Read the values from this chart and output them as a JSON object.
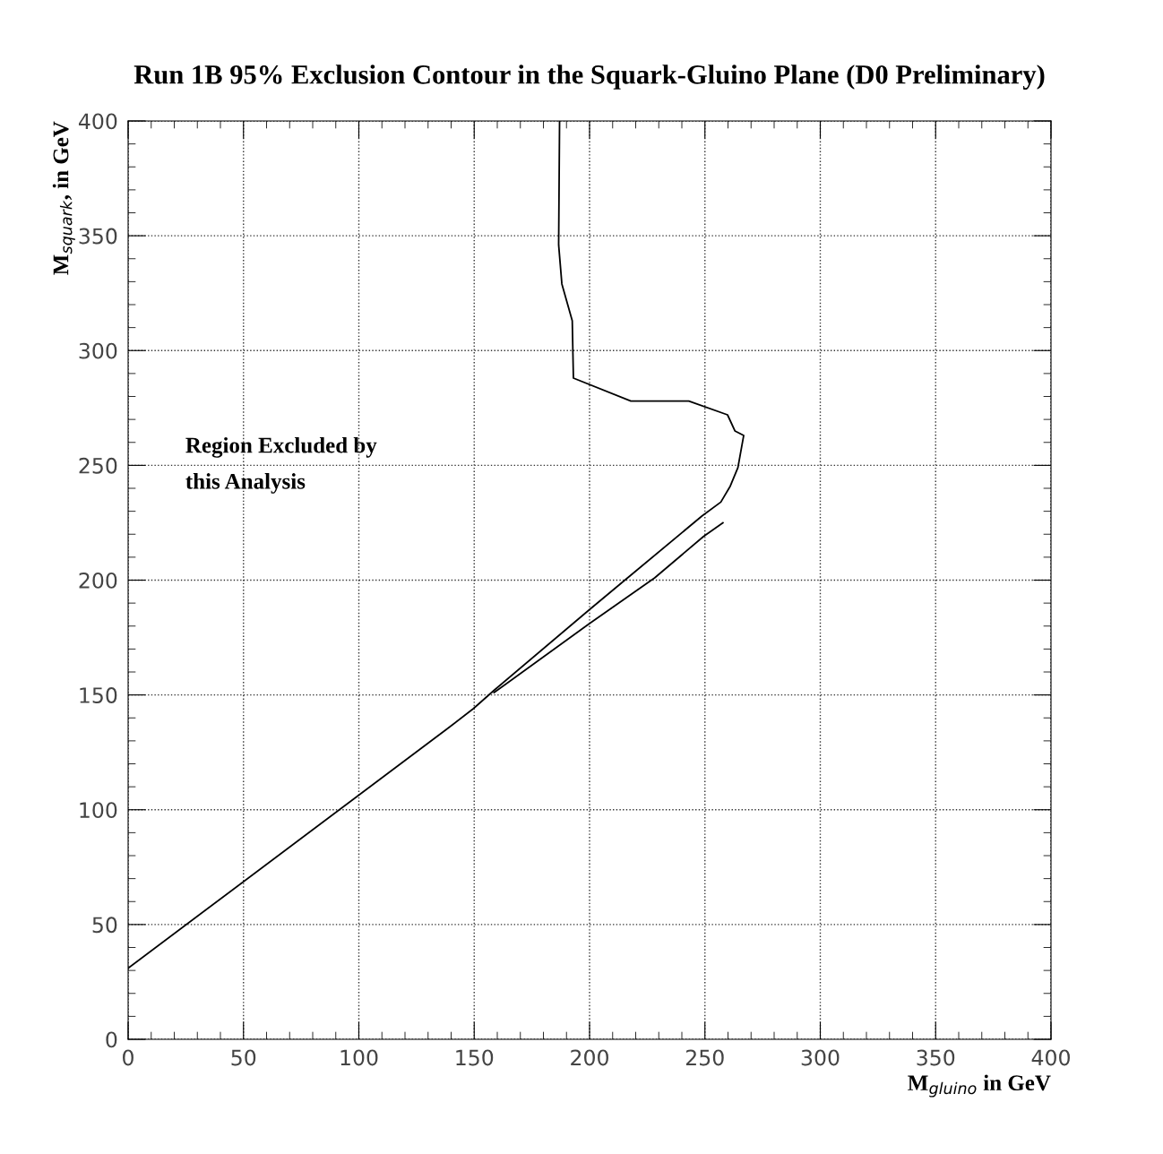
{
  "chart_data": {
    "type": "line",
    "title": "Run 1B 95% Exclusion Contour in the Squark-Gluino Plane (D0 Preliminary)",
    "xlabel": "M$_{gluino}$ in GeV",
    "ylabel": "M$_{squark}$, in GeV",
    "series": [
      {
        "color": "#000000",
        "x": [
          187.0,
          186.6,
          188.0,
          192.5,
          193.0,
          217.9,
          243.0,
          259.8,
          263.0,
          266.8,
          264.3,
          261.0,
          256.9,
          248.8,
          215.3,
          199.8,
          158.6,
          149.6,
          138.0,
          0
        ],
        "values": [
          400,
          346,
          329,
          313,
          288,
          278,
          278,
          272,
          265,
          263,
          249,
          241,
          234,
          228,
          200,
          187,
          152,
          144,
          135,
          31
        ]
      },
      {
        "color": "#000000",
        "x": [
          257.8,
          249.4,
          228.2,
          199.8,
          158.6
        ],
        "values": [
          225,
          219,
          201,
          181,
          151
        ]
      }
    ],
    "annotations": [
      "Region Excluded by\nthis Analysis"
    ],
    "xlim": [
      0,
      400
    ],
    "ylim": [
      0,
      400
    ],
    "xticks": [
      0,
      50,
      100,
      150,
      200,
      250,
      300,
      350,
      400
    ],
    "yticks": [
      0,
      50,
      100,
      150,
      200,
      250,
      300,
      350,
      400
    ],
    "grid": true,
    "line_style": "solid",
    "marker": "none",
    "legend": false
  }
}
